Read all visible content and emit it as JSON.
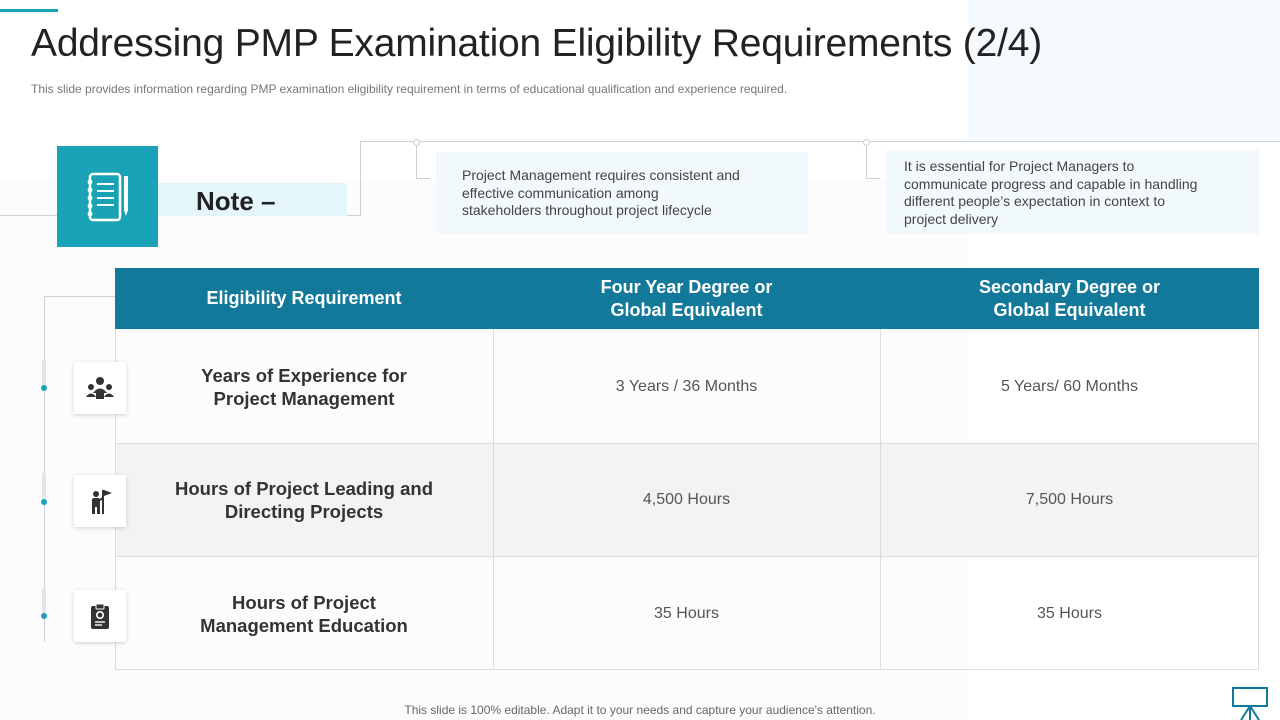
{
  "title": "Addressing PMP Examination Eligibility Requirements (2/4)",
  "subtitle": "This slide provides  information  regarding  PMP examination  eligibility requirement  in terms of educational  qualification  and  experience  required.",
  "note": {
    "label": "Note –",
    "icon": "notebook-icon",
    "boxes": [
      {
        "lines": [
          "Project Management requires consistent and",
          "effective communication among",
          "stakeholders throughout project lifecycle"
        ]
      },
      {
        "lines": [
          "It is essential for Project Managers to",
          "communicate progress and capable in handling",
          "different people’s expectation in context to",
          "project delivery"
        ]
      }
    ]
  },
  "table": {
    "headers": [
      {
        "lines": [
          "Eligibility Requirement"
        ]
      },
      {
        "lines": [
          "Four Year Degree or",
          "Global Equivalent"
        ]
      },
      {
        "lines": [
          "Secondary Degree or",
          "Global Equivalent"
        ]
      }
    ],
    "rows": [
      {
        "icon": "team-icon",
        "requirement": [
          "Years of Experience for",
          "Project Management"
        ],
        "four_year": "3 Years  /  36 Months",
        "secondary": "5 Years/  60 Months"
      },
      {
        "icon": "leader-flag-icon",
        "requirement": [
          "Hours of Project Leading and",
          "Directing Projects"
        ],
        "four_year": "4,500 Hours",
        "secondary": "7,500 Hours"
      },
      {
        "icon": "clipboard-gear-icon",
        "requirement": [
          "Hours of Project",
          "Management Education"
        ],
        "four_year": "35 Hours",
        "secondary": "35 Hours"
      }
    ]
  },
  "footer": "This slide is 100% editable. Adapt it to your needs and capture your audience's attention.",
  "colors": {
    "accent": "#1aa3b6",
    "header": "#13799a",
    "note_box": "#f2f9fc"
  }
}
